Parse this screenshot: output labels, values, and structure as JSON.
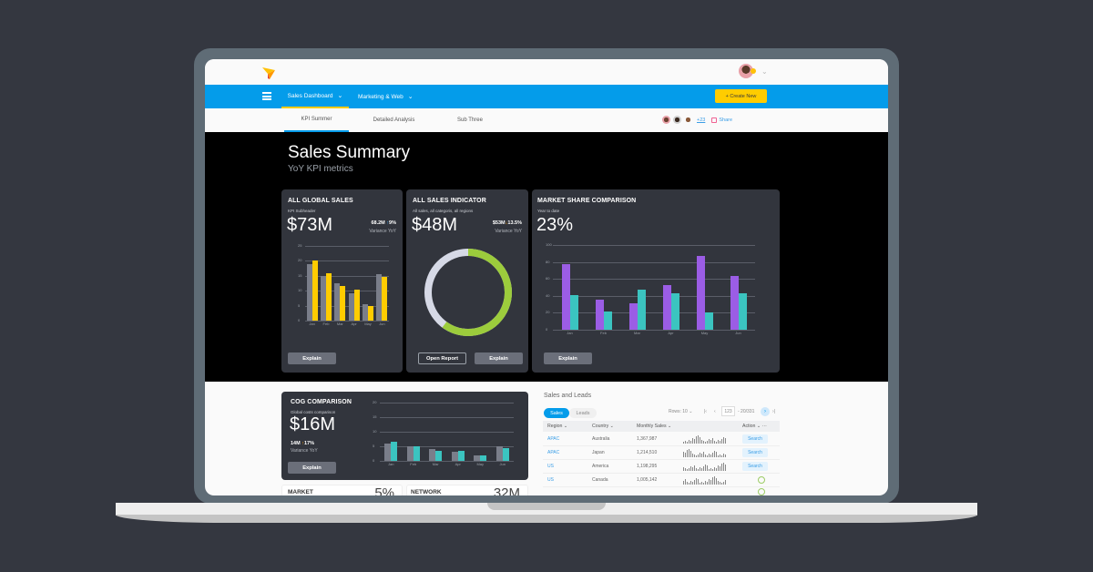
{
  "topbar": {
    "user_menu_chevron": "⌄"
  },
  "navbar": {
    "items": [
      {
        "label": "Sales Dashboard",
        "active": true
      },
      {
        "label": "Marketing & Web",
        "active": false
      }
    ],
    "create_button": "+ Create New",
    "dropdown_glyph": "⌄"
  },
  "subtabs": {
    "items": [
      {
        "label": "KPI Summer",
        "active": true
      },
      {
        "label": "Detailed Analysis",
        "active": false
      },
      {
        "label": "Sub Three",
        "active": false
      }
    ],
    "collaborators_more": "+23",
    "share_label": "Share"
  },
  "hero": {
    "title": "Sales Summary",
    "subtitle": "YoY KPI metrics"
  },
  "cards": {
    "global_sales": {
      "title": "ALL GLOBAL SALES",
      "subheader": "KPI Subheader",
      "value": "$73M",
      "variance_value": "68.2M",
      "variance_arrow": "↑",
      "variance_pct": "9%",
      "variance_label": "Variance YoY",
      "button": "Explain"
    },
    "sales_indicator": {
      "title": "ALL SALES INDICATOR",
      "subheader": "All sales, all categoris, all regions",
      "value": "$48M",
      "variance_value": "$53M",
      "variance_arrow": "↓",
      "variance_pct": "13.5%",
      "variance_label": "Variance YoY",
      "button_open": "Open Report",
      "button_explain": "Explain"
    },
    "market_share": {
      "title": "MARKET SHARE COMPARISON",
      "subheader": "Year to date",
      "value": "23%",
      "button": "Explain"
    },
    "cog": {
      "title": "COG COMPARISON",
      "subheader": "Global costs comparison",
      "value": "$16M",
      "variance_value": "14M",
      "variance_arrow": "↑",
      "variance_pct": "17%",
      "variance_label": "Variance YoY",
      "button": "Explain"
    },
    "market_partial": {
      "title": "MARKET",
      "value": "5%"
    },
    "network_partial": {
      "title": "NETWORK",
      "value": "32M"
    }
  },
  "chart_data": [
    {
      "type": "bar",
      "title": "ALL GLOBAL SALES",
      "categories": [
        "Jan",
        "Feb",
        "Mar",
        "Apr",
        "May",
        "Jun"
      ],
      "series": [
        {
          "name": "Previous",
          "color": "#7a7e8a",
          "values": [
            19,
            15,
            12.5,
            9,
            5.5,
            15.5
          ]
        },
        {
          "name": "Current",
          "color": "#ffcc00",
          "values": [
            20,
            16,
            11.5,
            10.5,
            5,
            14.5
          ]
        }
      ],
      "yticks": [
        "0",
        "5",
        "10",
        "15",
        "20",
        "25"
      ],
      "ylim": [
        0,
        25
      ]
    },
    {
      "type": "pie",
      "title": "ALL SALES INDICATOR",
      "slices": [
        {
          "name": "Achieved",
          "color": "#9ccc3c",
          "value": 60
        },
        {
          "name": "Remaining",
          "color": "#d6d9e6",
          "value": 40
        }
      ]
    },
    {
      "type": "bar",
      "title": "MARKET SHARE COMPARISON",
      "categories": [
        "Jan",
        "Feb",
        "Mar",
        "Apr",
        "May",
        "Jun"
      ],
      "series": [
        {
          "name": "Series A",
          "color": "#9b5de5",
          "values": [
            77,
            36,
            31,
            53,
            87,
            63
          ]
        },
        {
          "name": "Series B",
          "color": "#3bc4c0",
          "values": [
            41,
            21,
            47,
            43,
            20,
            43
          ]
        }
      ],
      "yticks": [
        "0",
        "20",
        "40",
        "60",
        "80",
        "100"
      ],
      "ylim": [
        0,
        100
      ]
    },
    {
      "type": "bar",
      "title": "COG COMPARISON",
      "categories": [
        "Jan",
        "Feb",
        "Mar",
        "Apr",
        "May",
        "Jun"
      ],
      "series": [
        {
          "name": "Previous",
          "color": "#7a7e8a",
          "values": [
            6,
            5,
            4,
            3,
            2,
            5
          ]
        },
        {
          "name": "Current",
          "color": "#3bc4c0",
          "values": [
            6.5,
            5,
            3.5,
            3.5,
            2,
            4.5
          ]
        }
      ],
      "yticks": [
        "0",
        "5",
        "10",
        "15",
        "20"
      ],
      "ylim": [
        0,
        20
      ]
    }
  ],
  "sales_leads": {
    "title": "Sales and Leads",
    "tabs": [
      {
        "label": "Sales",
        "active": true
      },
      {
        "label": "Leads",
        "active": false
      }
    ],
    "rows_label": "Rows: 10",
    "page_input": "123",
    "page_range": "- 20/331",
    "columns": [
      "Region",
      "Country",
      "Monthly Sales",
      "Action"
    ],
    "rows": [
      {
        "region": "APAC",
        "country": "Australia",
        "sales": "1,367,987",
        "action": "Search"
      },
      {
        "region": "APAC",
        "country": "Japan",
        "sales": "1,214,510",
        "action": "Search"
      },
      {
        "region": "US",
        "country": "America",
        "sales": "1,198,295",
        "action": "Search"
      },
      {
        "region": "US",
        "country": "Canada",
        "sales": "1,005,142",
        "action": "check"
      }
    ]
  }
}
